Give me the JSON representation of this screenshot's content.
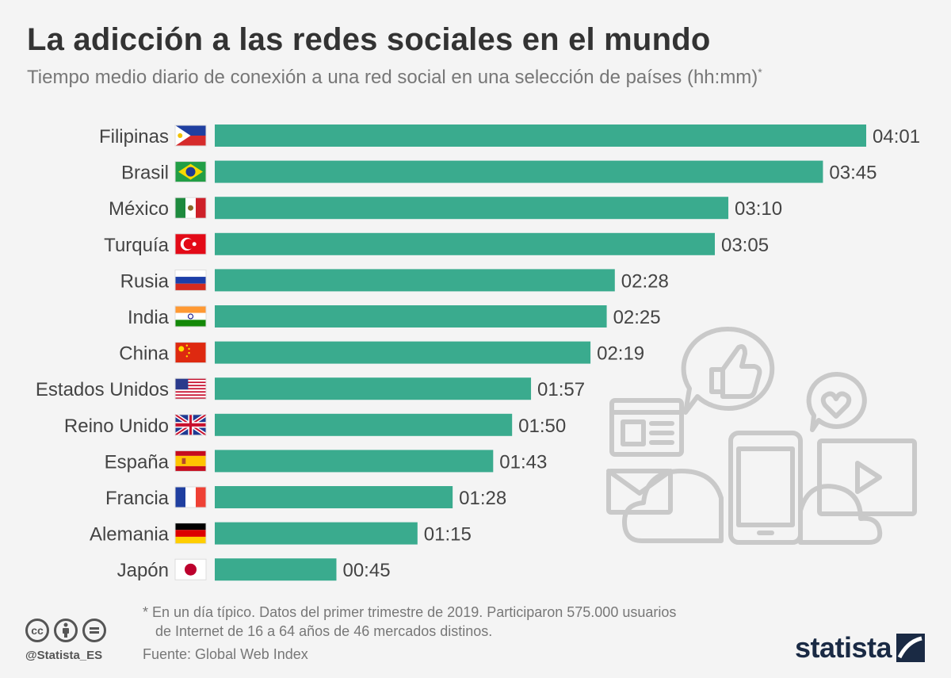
{
  "header": {
    "title": "La adicción a las redes sociales en el mundo",
    "subtitle": "Tiempo medio diario de conexión a una red social en una selección de países (hh:mm)",
    "subtitle_mark": "*"
  },
  "chart_data": {
    "type": "bar",
    "orientation": "horizontal",
    "title": "La adicción a las redes sociales en el mundo",
    "subtitle": "Tiempo medio diario de conexión a una red social en una selección de países (hh:mm)",
    "unit": "hh:mm",
    "bar_color": "#3aab8e",
    "categories": [
      "Filipinas",
      "Brasil",
      "México",
      "Turquía",
      "Rusia",
      "India",
      "China",
      "Estados Unidos",
      "Reino Unido",
      "España",
      "Francia",
      "Alemania",
      "Japón"
    ],
    "labels": [
      "04:01",
      "03:45",
      "03:10",
      "03:05",
      "02:28",
      "02:25",
      "02:19",
      "01:57",
      "01:50",
      "01:43",
      "01:28",
      "01:15",
      "00:45"
    ],
    "values_minutes": [
      241,
      225,
      190,
      185,
      148,
      145,
      139,
      117,
      110,
      103,
      88,
      75,
      45
    ],
    "flags": [
      "philippines-flag",
      "brazil-flag",
      "mexico-flag",
      "turkey-flag",
      "russia-flag",
      "india-flag",
      "china-flag",
      "usa-flag",
      "uk-flag",
      "spain-flag",
      "france-flag",
      "germany-flag",
      "japan-flag"
    ]
  },
  "footer": {
    "footnote_line1": "* En un día típico. Datos del primer trimestre de 2019. Participaron 575.000 usuarios",
    "footnote_line2": "de Internet de 16 a 64 años de 46 mercados distinos.",
    "source": "Fuente: Global Web Index",
    "handle": "@Statista_ES",
    "brand": "statista",
    "license_icons": [
      "cc-icon",
      "by-icon",
      "nd-icon"
    ]
  }
}
